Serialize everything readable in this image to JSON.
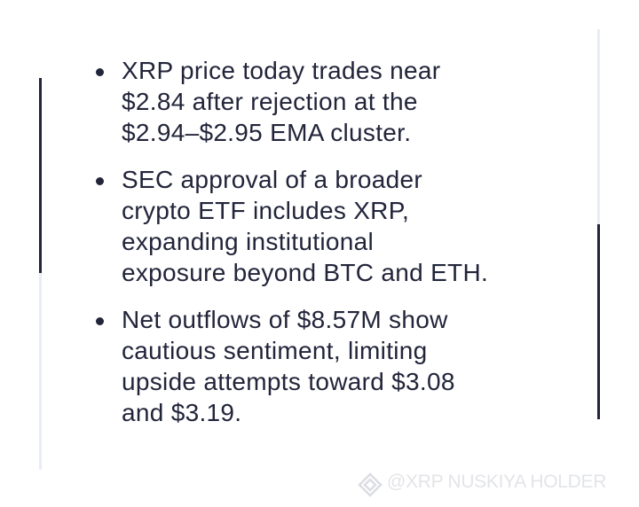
{
  "bullets": [
    {
      "lines": [
        "XRP price today trades near",
        "$2.84 after rejection at the",
        "$2.94–$2.95 EMA cluster."
      ]
    },
    {
      "lines": [
        "SEC approval of a broader",
        "crypto ETF includes XRP,",
        "expanding institutional",
        "exposure beyond BTC and ETH."
      ]
    },
    {
      "lines": [
        "Net outflows of $8.57M show",
        "cautious sentiment, limiting",
        "upside attempts toward $3.08",
        "and $3.19."
      ]
    }
  ],
  "watermark": "@XRP NUSKIYA HOLDER"
}
